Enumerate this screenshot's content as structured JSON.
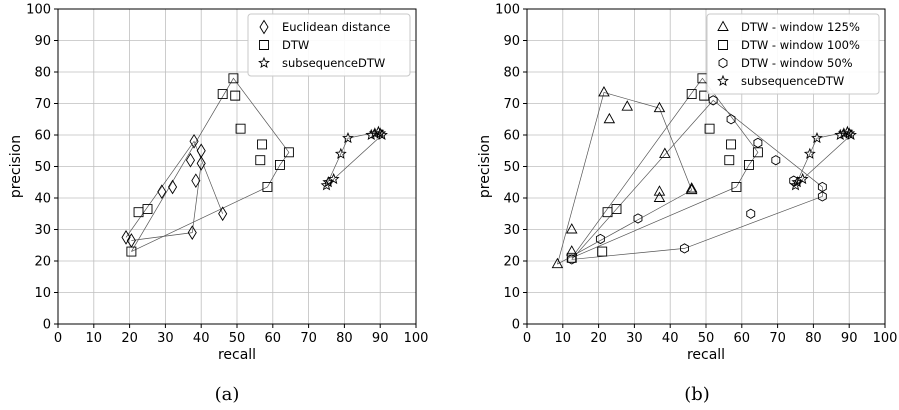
{
  "chart_data": [
    {
      "type": "scatter",
      "caption": "(a)",
      "xlabel": "recall",
      "ylabel": "precision",
      "xlim": [
        0,
        100
      ],
      "ylim": [
        0,
        100
      ],
      "xticks": [
        0,
        10,
        20,
        30,
        40,
        50,
        60,
        70,
        80,
        90,
        100
      ],
      "yticks": [
        0,
        10,
        20,
        30,
        40,
        50,
        60,
        70,
        80,
        90,
        100
      ],
      "grid": true,
      "legend_position": "top-right",
      "series": [
        {
          "name": "Euclidean distance",
          "marker": "diamond",
          "points": [
            [
              19,
              27.5
            ],
            [
              20.5,
              26.5
            ],
            [
              29,
              42
            ],
            [
              32,
              43.5
            ],
            [
              37,
              52
            ],
            [
              38,
              58
            ],
            [
              38.5,
              45.5
            ],
            [
              40,
              55
            ],
            [
              40,
              51
            ],
            [
              37.5,
              29
            ],
            [
              46,
              35
            ]
          ],
          "hull": []
        },
        {
          "name": "DTW",
          "marker": "square",
          "points": [
            [
              20.5,
              23
            ],
            [
              22.5,
              35.5
            ],
            [
              25,
              36.5
            ],
            [
              46,
              73
            ],
            [
              49,
              78
            ],
            [
              49.5,
              72.5
            ],
            [
              51,
              62
            ],
            [
              56.5,
              52
            ],
            [
              57,
              57
            ],
            [
              58.5,
              43.5
            ],
            [
              62,
              50.5
            ],
            [
              64.5,
              54.5
            ]
          ],
          "hull": [
            [
              20.5,
              23
            ],
            [
              49,
              78
            ],
            [
              64.5,
              54.5
            ],
            [
              62,
              50.5
            ],
            [
              58.5,
              43.5
            ],
            [
              20.5,
              23
            ]
          ]
        },
        {
          "name": "subsequenceDTW",
          "marker": "star",
          "points": [
            [
              75,
              44
            ],
            [
              75.5,
              45
            ],
            [
              77,
              46
            ],
            [
              79,
              54
            ],
            [
              81,
              59
            ],
            [
              87.5,
              60
            ],
            [
              88.5,
              60.5
            ],
            [
              89.5,
              61
            ],
            [
              90,
              60.5
            ],
            [
              90.5,
              60
            ]
          ],
          "hull": [
            [
              75,
              44
            ],
            [
              79,
              54
            ],
            [
              81,
              59
            ],
            [
              89.5,
              61
            ],
            [
              90.5,
              60
            ],
            [
              77,
              46
            ],
            [
              75,
              44
            ]
          ]
        }
      ],
      "extra_lines": [
        [
          [
            19,
            27.5
          ],
          [
            38,
            58
          ],
          [
            46,
            35
          ]
        ],
        [
          [
            20.5,
            26.5
          ],
          [
            37.5,
            29
          ],
          [
            40,
            51
          ]
        ]
      ]
    },
    {
      "type": "scatter",
      "caption": "(b)",
      "xlabel": "recall",
      "ylabel": "precision",
      "xlim": [
        0,
        100
      ],
      "ylim": [
        0,
        100
      ],
      "xticks": [
        0,
        10,
        20,
        30,
        40,
        50,
        60,
        70,
        80,
        90,
        100
      ],
      "yticks": [
        0,
        10,
        20,
        30,
        40,
        50,
        60,
        70,
        80,
        90,
        100
      ],
      "grid": true,
      "legend_position": "top-right",
      "series": [
        {
          "name": "DTW - window 125%",
          "marker": "triangle",
          "points": [
            [
              8.5,
              19
            ],
            [
              12.5,
              30
            ],
            [
              12.5,
              23
            ],
            [
              21.5,
              73.5
            ],
            [
              23,
              65
            ],
            [
              28,
              69
            ],
            [
              37,
              68.5
            ],
            [
              37,
              42
            ],
            [
              37,
              40
            ],
            [
              38.5,
              54
            ],
            [
              46,
              43
            ],
            [
              46,
              42.5
            ]
          ],
          "hull": [
            [
              8.5,
              19
            ],
            [
              21.5,
              73.5
            ],
            [
              37,
              68.5
            ],
            [
              46,
              42.5
            ],
            [
              8.5,
              19
            ]
          ]
        },
        {
          "name": "DTW - window 100%",
          "marker": "square",
          "points": [
            [
              12.5,
              21
            ],
            [
              21,
              23
            ],
            [
              22.5,
              35.5
            ],
            [
              25,
              36.5
            ],
            [
              46,
              73
            ],
            [
              49,
              78
            ],
            [
              49.5,
              72.5
            ],
            [
              51,
              62
            ],
            [
              56.5,
              52
            ],
            [
              57,
              57
            ],
            [
              58.5,
              43.5
            ],
            [
              62,
              50.5
            ],
            [
              64.5,
              54.5
            ]
          ],
          "hull": [
            [
              12.5,
              21
            ],
            [
              49,
              78
            ],
            [
              64.5,
              54.5
            ],
            [
              62,
              50.5
            ],
            [
              58.5,
              43.5
            ],
            [
              12.5,
              21
            ]
          ]
        },
        {
          "name": "DTW - window 50%",
          "marker": "hexagon",
          "points": [
            [
              12.5,
              20.5
            ],
            [
              20.5,
              27
            ],
            [
              31,
              33.5
            ],
            [
              44,
              24
            ],
            [
              52,
              71
            ],
            [
              57,
              65
            ],
            [
              62.5,
              35
            ],
            [
              64.5,
              57.5
            ],
            [
              69.5,
              52
            ],
            [
              74.5,
              45.5
            ],
            [
              82.5,
              43.5
            ],
            [
              82.5,
              40.5
            ]
          ],
          "hull": [
            [
              12.5,
              20.5
            ],
            [
              52,
              71
            ],
            [
              82.5,
              43.5
            ],
            [
              82.5,
              40.5
            ],
            [
              44,
              24
            ],
            [
              12.5,
              20.5
            ]
          ]
        },
        {
          "name": "subsequenceDTW",
          "marker": "star",
          "points": [
            [
              75,
              44
            ],
            [
              75.5,
              45
            ],
            [
              77,
              46
            ],
            [
              79,
              54
            ],
            [
              81,
              59
            ],
            [
              87.5,
              60
            ],
            [
              88.5,
              60.5
            ],
            [
              89.5,
              61
            ],
            [
              90,
              60.5
            ],
            [
              90.5,
              60
            ]
          ],
          "hull": [
            [
              75,
              44
            ],
            [
              79,
              54
            ],
            [
              81,
              59
            ],
            [
              89.5,
              61
            ],
            [
              90.5,
              60
            ],
            [
              77,
              46
            ],
            [
              75,
              44
            ]
          ]
        }
      ],
      "extra_lines": []
    }
  ]
}
